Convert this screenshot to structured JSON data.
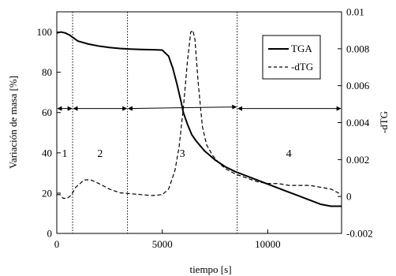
{
  "chart_data": {
    "type": "line",
    "xlabel": "tiempo [s]",
    "ylabel_left": "Variación de masa [%]",
    "ylabel_right": "-dTG",
    "xlim": [
      0,
      13500
    ],
    "ylim_left": [
      0,
      110
    ],
    "ylim_right": [
      -0.002,
      0.01
    ],
    "x_ticks": [
      "0",
      "5000",
      "10000"
    ],
    "x_tick_values": [
      0,
      5000,
      10000
    ],
    "y_ticks_left": [
      "0",
      "20",
      "40",
      "60",
      "80",
      "100"
    ],
    "y_tick_values_left": [
      0,
      20,
      40,
      60,
      80,
      100
    ],
    "y_ticks_right": [
      "-0.002",
      "0",
      "0.002",
      "0.004",
      "0.006",
      "0.008",
      "0.01"
    ],
    "y_tick_values_right": [
      -0.002,
      0,
      0.002,
      0.004,
      0.006,
      0.008,
      0.01
    ],
    "legend_position": "top-right",
    "grid": false,
    "series": [
      {
        "name": "TGA",
        "axis": "left",
        "style": "solid",
        "x": [
          0,
          200,
          400,
          600,
          800,
          1000,
          1500,
          2000,
          2500,
          3000,
          3500,
          4000,
          4500,
          5000,
          5300,
          5500,
          5700,
          5900,
          6000,
          6200,
          6400,
          6600,
          7000,
          7500,
          8000,
          8500,
          9000,
          9500,
          10000,
          10500,
          11000,
          11500,
          12000,
          12500,
          13000,
          13500
        ],
        "y": [
          99.5,
          100,
          99.5,
          98.5,
          97,
          95.5,
          94,
          93,
          92.3,
          91.8,
          91.5,
          91.3,
          91.2,
          91,
          88,
          82,
          74,
          65,
          60,
          54,
          49,
          46,
          41,
          36.5,
          33,
          30.5,
          28.5,
          26.5,
          24.5,
          22.5,
          20.5,
          18.5,
          16.5,
          14.5,
          13.5,
          13.5
        ]
      },
      {
        "name": "-dTG",
        "axis": "right",
        "style": "dashed",
        "x": [
          0,
          150,
          300,
          500,
          700,
          900,
          1100,
          1300,
          1600,
          2000,
          2500,
          3000,
          3500,
          4000,
          4500,
          5000,
          5300,
          5600,
          5800,
          6000,
          6200,
          6350,
          6450,
          6550,
          6700,
          6900,
          7100,
          7400,
          7700,
          8000,
          8500,
          9000,
          9500,
          10000,
          10500,
          11000,
          11500,
          12000,
          12500,
          13000,
          13500
        ],
        "y": [
          0.0001,
          0.0001,
          -0.0001,
          -0.0001,
          0.0001,
          0.0005,
          0.0007,
          0.0009,
          0.0009,
          0.0007,
          0.0004,
          0.0002,
          0.00015,
          0.0001,
          5e-05,
          0.0001,
          0.0004,
          0.0014,
          0.0027,
          0.0048,
          0.0074,
          0.0089,
          0.009,
          0.0085,
          0.0062,
          0.0038,
          0.0028,
          0.0022,
          0.0018,
          0.0015,
          0.0012,
          0.001,
          0.0008,
          0.0007,
          0.0007,
          0.0006,
          0.0006,
          0.0006,
          0.0005,
          0.0004,
          0.0001
        ]
      }
    ],
    "vertical_lines_x": [
      750,
      3350,
      8550
    ],
    "zones": [
      {
        "label": "1",
        "x": 375
      },
      {
        "label": "2",
        "x": 2050
      },
      {
        "label": "3",
        "x": 5950
      },
      {
        "label": "4",
        "x": 11000
      }
    ],
    "zone_arrow_y": 62
  }
}
